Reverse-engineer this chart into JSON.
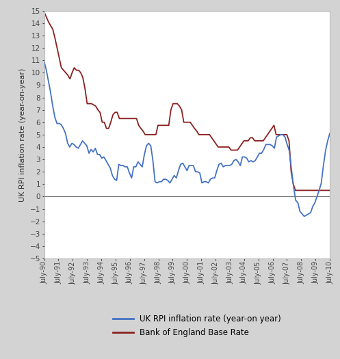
{
  "ylabel": "UK RPI inflation rate (year-on-year)",
  "ylim": [
    -5,
    15
  ],
  "yticks": [
    -5,
    -4,
    -3,
    -2,
    -1,
    0,
    1,
    2,
    3,
    4,
    5,
    6,
    7,
    8,
    9,
    10,
    11,
    12,
    13,
    14,
    15
  ],
  "background_color": "#ffffff",
  "outer_background": "#d3d3d3",
  "rpi_color": "#4472c4",
  "boe_color": "#8b2020",
  "line_width": 1.3,
  "legend_labels": [
    "UK RPI inflation rate (year-on year)",
    "Bank of England Base Rate"
  ],
  "xtick_labels": [
    "July-90",
    "July-91",
    "July-92",
    "July-93",
    "July-94",
    "July-95",
    "July-96",
    "July-97",
    "July-98",
    "July-99",
    "July-00",
    "July-01",
    "July-02",
    "July-03",
    "July-04",
    "July-05",
    "July-06",
    "July-07",
    "July-08",
    "July-09",
    "July-10"
  ],
  "rpi_data": [
    10.9,
    10.2,
    9.3,
    8.4,
    7.3,
    6.4,
    5.9,
    5.9,
    5.8,
    5.5,
    5.1,
    4.3,
    4.0,
    4.3,
    4.2,
    4.0,
    3.9,
    4.2,
    4.5,
    4.3,
    4.1,
    3.5,
    3.8,
    3.6,
    3.9,
    3.4,
    3.4,
    3.1,
    3.2,
    2.9,
    2.6,
    2.3,
    1.7,
    1.4,
    1.3,
    2.6,
    2.5,
    2.5,
    2.4,
    2.4,
    1.9,
    1.5,
    2.4,
    2.4,
    2.8,
    2.6,
    2.4,
    3.4,
    4.1,
    4.3,
    4.1,
    2.9,
    1.2,
    1.1,
    1.2,
    1.2,
    1.4,
    1.4,
    1.3,
    1.1,
    1.4,
    1.7,
    1.5,
    2.1,
    2.6,
    2.7,
    2.4,
    2.1,
    2.5,
    2.5,
    2.5,
    2.0,
    2.0,
    1.9,
    1.1,
    1.2,
    1.2,
    1.1,
    1.4,
    1.5,
    1.5,
    2.1,
    2.6,
    2.7,
    2.4,
    2.5,
    2.5,
    2.5,
    2.6,
    2.9,
    3.0,
    2.8,
    2.5,
    3.2,
    3.2,
    3.1,
    2.8,
    2.9,
    2.8,
    2.9,
    3.2,
    3.5,
    3.5,
    3.8,
    4.2,
    4.2,
    4.2,
    4.1,
    3.9,
    4.8,
    4.9,
    5.0,
    5.0,
    4.8,
    4.2,
    3.7,
    2.2,
    0.8,
    -0.3,
    -0.5,
    -1.2,
    -1.4,
    -1.6,
    -1.5,
    -1.4,
    -1.3,
    -0.8,
    -0.5,
    0.0,
    0.5,
    1.1,
    2.5,
    3.7,
    4.5,
    5.1
  ],
  "boe_data": [
    14.9,
    14.5,
    14.1,
    13.8,
    13.5,
    12.8,
    12.0,
    11.2,
    10.4,
    10.2,
    10.0,
    9.8,
    9.5,
    10.0,
    10.4,
    10.2,
    10.2,
    10.0,
    9.6,
    8.7,
    7.5,
    7.5,
    7.5,
    7.4,
    7.3,
    7.0,
    6.8,
    6.0,
    6.0,
    5.5,
    5.5,
    6.0,
    6.6,
    6.8,
    6.8,
    6.3,
    6.3,
    6.3,
    6.3,
    6.3,
    6.3,
    6.3,
    6.3,
    6.3,
    5.75,
    5.5,
    5.3,
    5.0,
    5.0,
    5.0,
    5.0,
    5.0,
    5.0,
    5.75,
    5.75,
    5.75,
    5.75,
    5.75,
    5.75,
    7.0,
    7.5,
    7.5,
    7.5,
    7.3,
    7.0,
    6.0,
    6.0,
    6.0,
    6.0,
    5.75,
    5.5,
    5.3,
    5.0,
    5.0,
    5.0,
    5.0,
    5.0,
    5.0,
    4.75,
    4.5,
    4.25,
    4.0,
    4.0,
    4.0,
    4.0,
    4.0,
    4.0,
    3.75,
    3.75,
    3.75,
    3.75,
    4.0,
    4.25,
    4.5,
    4.5,
    4.5,
    4.75,
    4.75,
    4.5,
    4.5,
    4.5,
    4.5,
    4.5,
    4.75,
    5.0,
    5.25,
    5.5,
    5.75,
    5.0,
    5.0,
    5.0,
    5.0,
    5.0,
    5.0,
    4.5,
    2.0,
    1.0,
    0.5,
    0.5,
    0.5,
    0.5,
    0.5,
    0.5,
    0.5,
    0.5,
    0.5,
    0.5,
    0.5,
    0.5,
    0.5,
    0.5,
    0.5,
    0.5,
    0.5
  ]
}
